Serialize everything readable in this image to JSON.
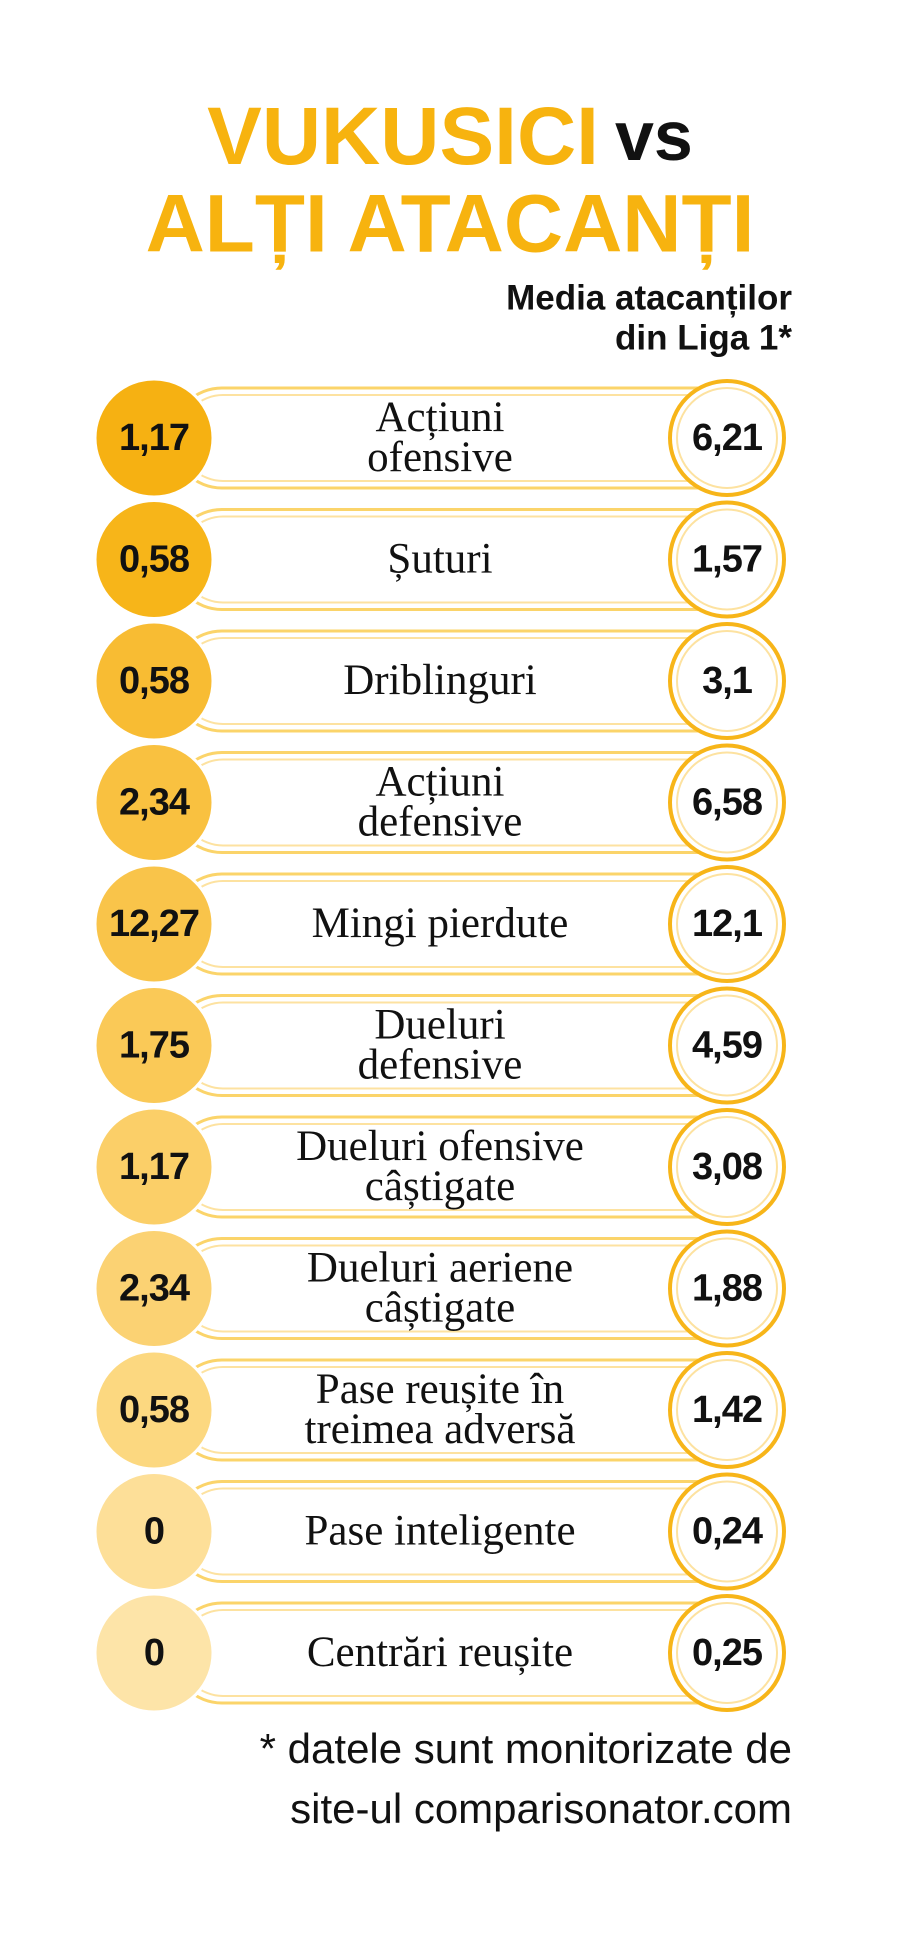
{
  "title": {
    "player": "VUKUSICI",
    "versus": "vs",
    "others": "ALȚI ATACANȚI"
  },
  "subtitle": [
    "Media atacanților",
    "din Liga 1*"
  ],
  "rows": [
    {
      "left": "1,17",
      "label": [
        "Acțiuni",
        "ofensive"
      ],
      "right": "6,21"
    },
    {
      "left": "0,58",
      "label": [
        "Șuturi"
      ],
      "right": "1,57"
    },
    {
      "left": "0,58",
      "label": [
        "Driblinguri"
      ],
      "right": "3,1"
    },
    {
      "left": "2,34",
      "label": [
        "Acțiuni",
        "defensive"
      ],
      "right": "6,58"
    },
    {
      "left": "12,27",
      "label": [
        "Mingi pierdute"
      ],
      "right": "12,1"
    },
    {
      "left": "1,75",
      "label": [
        "Dueluri",
        "defensive"
      ],
      "right": "4,59"
    },
    {
      "left": "1,17",
      "label": [
        "Dueluri ofensive",
        "câștigate"
      ],
      "right": "3,08"
    },
    {
      "left": "2,34",
      "label": [
        "Dueluri aeriene",
        "câștigate"
      ],
      "right": "1,88"
    },
    {
      "left": "0,58",
      "label": [
        "Pase reușite în",
        "treimea adversă"
      ],
      "right": "1,42"
    },
    {
      "left": "0",
      "label": [
        "Pase inteligente"
      ],
      "right": "0,24"
    },
    {
      "left": "0",
      "label": [
        "Centrări reușite"
      ],
      "right": "0,25"
    }
  ],
  "footnote": [
    "* datele sunt monitorizate de",
    "site-ul comparisonator.com"
  ]
}
